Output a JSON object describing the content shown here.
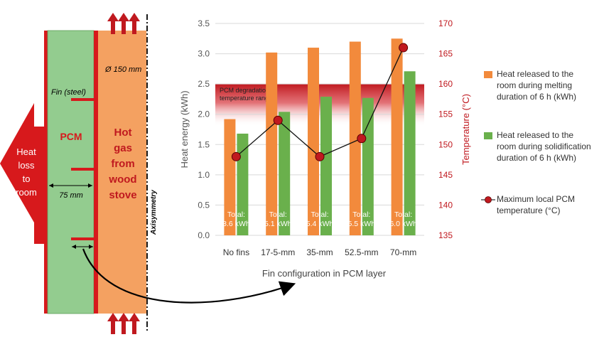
{
  "diagram": {
    "fin_label": "Fin (steel)",
    "diameter_label": "Ø 150 mm",
    "pcm_label": "PCM",
    "hot_gas_lines": [
      "Hot",
      "gas",
      "from",
      "wood",
      "stove"
    ],
    "heat_loss_lines": [
      "Heat",
      "loss",
      "to",
      "room"
    ],
    "width_label": "75 mm",
    "axis_label": "Axisymmetry"
  },
  "chart_data": {
    "type": "bar",
    "categories": [
      "No fins",
      "17-5-mm",
      "35-mm",
      "52.5-mm",
      "70-mm"
    ],
    "xlabel": "Fin configuration in PCM layer",
    "ylabel": "Heat energy (kWh)",
    "y2label": "Temperature (°C)",
    "ylim": [
      0,
      3.5
    ],
    "y2lim": [
      135,
      170
    ],
    "yticks": [
      "0.0",
      "0.5",
      "1.0",
      "1.5",
      "2.0",
      "2.5",
      "3.0",
      "3.5"
    ],
    "y2ticks": [
      "135",
      "140",
      "145",
      "150",
      "155",
      "160",
      "165",
      "170"
    ],
    "series": [
      {
        "name": "Heat released to the room during melting duration of 6 h (kWh)",
        "color": "#F28A3C",
        "values": [
          1.92,
          3.02,
          3.1,
          3.2,
          3.25
        ]
      },
      {
        "name": "Heat released to the room during solidification duration of 6 h (kWh)",
        "color": "#6AB04C",
        "values": [
          1.68,
          2.04,
          2.29,
          2.27,
          2.71
        ]
      },
      {
        "name": "Maximum local PCM temperature (°C)",
        "color": "#C0191F",
        "axis": "right",
        "values": [
          148,
          154,
          148,
          151,
          166
        ]
      }
    ],
    "totals": [
      "Total:\n3.6 kWh",
      "Total:\n5.1 kWh",
      "Total:\n5.4 kWh",
      "Total:\n5.5 kWh",
      "Total:\n6.0 kWh"
    ],
    "band_label": [
      "PCM degradation",
      "temperature range"
    ],
    "band_range_celsius": [
      153,
      160
    ]
  },
  "legend": [
    {
      "lines": [
        "Heat released to the",
        "room during melting",
        "duration of 6 h (kWh)"
      ],
      "color": "#F28A3C",
      "kind": "box"
    },
    {
      "lines": [
        "Heat released to the",
        "room during solidification",
        "duration of 6 h (kWh)"
      ],
      "color": "#6AB04C",
      "kind": "box"
    },
    {
      "lines": [
        "Maximum local PCM",
        "temperature (°C)"
      ],
      "color": "#C0191F",
      "kind": "line"
    }
  ]
}
